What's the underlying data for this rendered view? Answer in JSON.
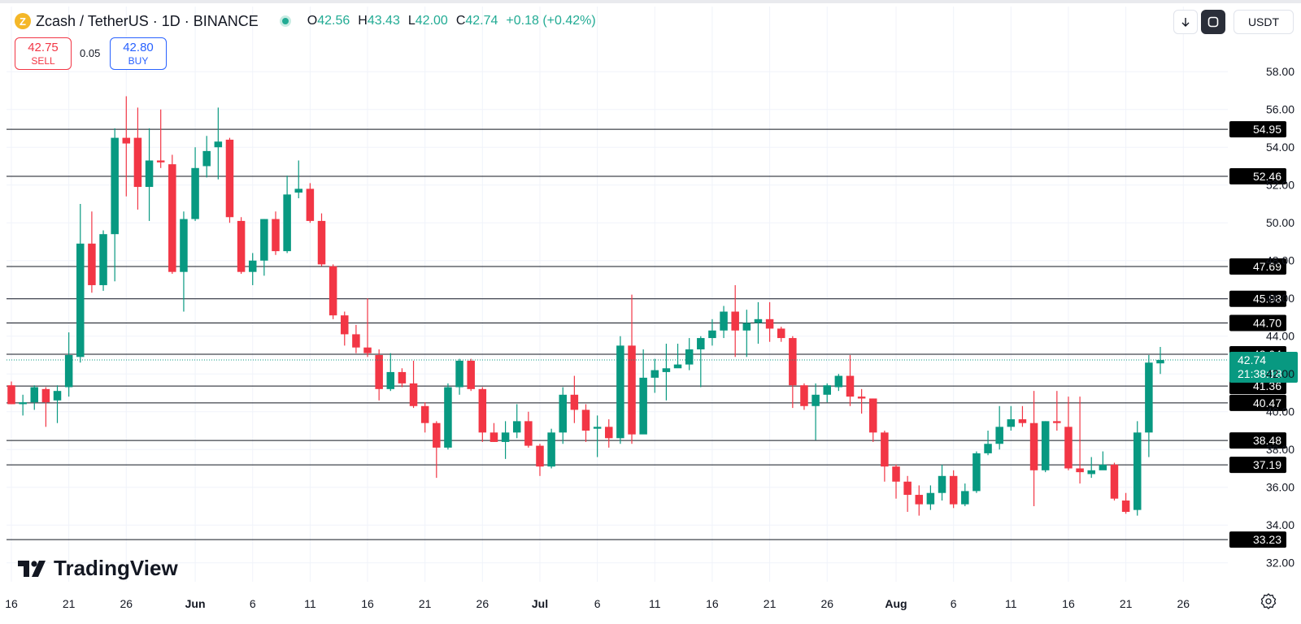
{
  "header": {
    "title": "Zcash / TetherUS · 1D · BINANCE",
    "ohlc": {
      "o_label": "O",
      "o": "42.56",
      "h_label": "H",
      "h": "43.43",
      "l_label": "L",
      "l": "42.00",
      "c_label": "C",
      "c": "42.74",
      "change": "+0.18 (+0.42%)"
    }
  },
  "trade": {
    "sell_price": "42.75",
    "sell_label": "SELL",
    "spread": "0.05",
    "buy_price": "42.80",
    "buy_label": "BUY"
  },
  "toolbar": {
    "currency": "USDT"
  },
  "brand": "TradingView",
  "colors": {
    "up": "#089981",
    "down": "#f23645",
    "line": "#131722",
    "grid": "#f0f3fa"
  },
  "icons": [
    "zcash-coin-icon",
    "market-status-icon",
    "arrow-down-icon",
    "fullscreen-icon",
    "tradingview-logo-icon",
    "settings-icon"
  ],
  "chart_data": {
    "type": "candlestick",
    "ylim": [
      31,
      59.3
    ],
    "y_ticks": [
      "58.00",
      "56.00",
      "54.00",
      "52.00",
      "50.00",
      "48.00",
      "46.00",
      "44.00",
      "42.00",
      "40.00",
      "38.00",
      "36.00",
      "34.00",
      "32.00"
    ],
    "x_ticks": [
      {
        "label": "16",
        "index": 0
      },
      {
        "label": "21",
        "index": 5
      },
      {
        "label": "26",
        "index": 10
      },
      {
        "label": "Jun",
        "index": 16
      },
      {
        "label": "6",
        "index": 21
      },
      {
        "label": "11",
        "index": 26
      },
      {
        "label": "16",
        "index": 31
      },
      {
        "label": "21",
        "index": 36
      },
      {
        "label": "26",
        "index": 41
      },
      {
        "label": "Jul",
        "index": 46
      },
      {
        "label": "6",
        "index": 51
      },
      {
        "label": "11",
        "index": 56
      },
      {
        "label": "16",
        "index": 61
      },
      {
        "label": "21",
        "index": 66
      },
      {
        "label": "26",
        "index": 71
      },
      {
        "label": "Aug",
        "index": 77
      },
      {
        "label": "6",
        "index": 82
      },
      {
        "label": "11",
        "index": 87
      },
      {
        "label": "16",
        "index": 92
      },
      {
        "label": "21",
        "index": 97
      },
      {
        "label": "26",
        "index": 102
      }
    ],
    "levels": [
      54.95,
      52.46,
      47.69,
      45.98,
      44.7,
      43.04,
      41.36,
      40.47,
      38.48,
      37.19,
      33.23
    ],
    "last_price": {
      "value": 42.74,
      "label": "42.74",
      "countdown": "21:38:18"
    },
    "candles": [
      [
        41.4,
        40.4,
        41.6,
        40.4
      ],
      [
        40.4,
        40.5,
        40.9,
        39.8
      ],
      [
        40.5,
        41.3,
        41.4,
        40.1
      ],
      [
        41.2,
        40.5,
        41.3,
        39.2
      ],
      [
        40.6,
        41.1,
        41.4,
        39.4
      ],
      [
        41.3,
        43.0,
        44.2,
        40.8
      ],
      [
        42.9,
        48.9,
        51.0,
        42.6
      ],
      [
        48.9,
        46.7,
        50.6,
        46.3
      ],
      [
        46.7,
        49.4,
        49.6,
        46.4
      ],
      [
        49.4,
        54.5,
        55.0,
        46.9
      ],
      [
        54.5,
        54.2,
        56.7,
        51.4
      ],
      [
        54.5,
        51.9,
        56.1,
        50.7
      ],
      [
        51.9,
        53.3,
        55.0,
        50.1
      ],
      [
        53.3,
        53.2,
        56.0,
        52.9
      ],
      [
        53.1,
        47.4,
        53.6,
        47.3
      ],
      [
        47.4,
        50.2,
        50.6,
        45.3
      ],
      [
        50.2,
        52.9,
        54.0,
        50.1
      ],
      [
        53.0,
        53.8,
        54.6,
        52.4
      ],
      [
        54.0,
        54.3,
        56.1,
        52.3
      ],
      [
        54.4,
        50.3,
        54.5,
        50.0
      ],
      [
        50.1,
        47.4,
        50.3,
        47.3
      ],
      [
        47.4,
        48.0,
        48.4,
        46.7
      ],
      [
        48.0,
        50.2,
        50.2,
        47.2
      ],
      [
        50.2,
        48.5,
        50.6,
        48.3
      ],
      [
        48.5,
        51.5,
        52.5,
        48.4
      ],
      [
        51.6,
        51.8,
        53.3,
        51.3
      ],
      [
        51.8,
        50.1,
        52.1,
        50.0
      ],
      [
        50.1,
        47.8,
        50.5,
        47.7
      ],
      [
        47.7,
        45.1,
        47.8,
        44.9
      ],
      [
        45.1,
        44.1,
        45.3,
        43.5
      ],
      [
        44.1,
        43.4,
        44.6,
        43.1
      ],
      [
        43.4,
        43.1,
        46.0,
        42.9
      ],
      [
        43.0,
        41.2,
        43.3,
        40.6
      ],
      [
        41.2,
        42.1,
        43.1,
        41.1
      ],
      [
        42.1,
        41.5,
        42.3,
        41.3
      ],
      [
        41.5,
        40.3,
        42.7,
        40.2
      ],
      [
        40.3,
        39.4,
        40.5,
        38.9
      ],
      [
        39.4,
        38.1,
        39.5,
        36.5
      ],
      [
        38.1,
        41.3,
        41.5,
        38.0
      ],
      [
        41.3,
        42.7,
        42.8,
        40.9
      ],
      [
        42.7,
        41.2,
        42.8,
        41.1
      ],
      [
        41.2,
        38.9,
        41.3,
        38.4
      ],
      [
        38.9,
        38.4,
        39.4,
        38.4
      ],
      [
        38.4,
        38.9,
        39.5,
        37.5
      ],
      [
        38.9,
        39.5,
        40.4,
        38.6
      ],
      [
        39.5,
        38.2,
        40.0,
        38.1
      ],
      [
        38.2,
        37.1,
        38.3,
        36.6
      ],
      [
        37.1,
        38.9,
        39.1,
        37.0
      ],
      [
        38.9,
        40.9,
        41.3,
        38.3
      ],
      [
        40.9,
        40.1,
        41.9,
        39.4
      ],
      [
        40.1,
        39.0,
        40.4,
        38.4
      ],
      [
        39.1,
        39.2,
        39.8,
        37.6
      ],
      [
        39.2,
        38.6,
        39.6,
        38.1
      ],
      [
        38.6,
        43.5,
        44.0,
        38.3
      ],
      [
        43.5,
        38.8,
        46.2,
        38.3
      ],
      [
        38.8,
        41.8,
        43.3,
        40.2
      ],
      [
        41.8,
        42.2,
        42.8,
        41.0
      ],
      [
        42.1,
        42.3,
        43.6,
        40.6
      ],
      [
        42.3,
        42.5,
        43.6,
        42.4
      ],
      [
        42.5,
        43.3,
        43.9,
        42.2
      ],
      [
        43.3,
        43.9,
        44.0,
        41.3
      ],
      [
        43.9,
        44.3,
        44.9,
        43.5
      ],
      [
        44.3,
        45.3,
        45.6,
        43.9
      ],
      [
        45.3,
        44.3,
        46.7,
        42.9
      ],
      [
        44.3,
        44.7,
        45.4,
        42.9
      ],
      [
        44.7,
        44.9,
        45.8,
        43.6
      ],
      [
        44.9,
        44.4,
        45.8,
        43.7
      ],
      [
        44.4,
        43.9,
        44.5,
        43.7
      ],
      [
        43.9,
        41.4,
        44.0,
        40.2
      ],
      [
        41.4,
        40.3,
        41.5,
        40.1
      ],
      [
        40.3,
        40.9,
        41.5,
        38.5
      ],
      [
        40.9,
        41.4,
        41.5,
        40.5
      ],
      [
        41.3,
        41.9,
        42.0,
        41.1
      ],
      [
        41.9,
        40.8,
        43.0,
        40.3
      ],
      [
        40.8,
        40.7,
        41.2,
        39.9
      ],
      [
        40.7,
        38.9,
        40.7,
        38.4
      ],
      [
        38.9,
        37.1,
        39.0,
        36.3
      ],
      [
        37.1,
        36.3,
        37.2,
        35.4
      ],
      [
        36.3,
        35.6,
        36.6,
        34.7
      ],
      [
        35.6,
        35.1,
        36.1,
        34.5
      ],
      [
        35.1,
        35.7,
        36.1,
        34.8
      ],
      [
        35.7,
        36.6,
        37.2,
        35.3
      ],
      [
        36.6,
        35.1,
        36.9,
        34.9
      ],
      [
        35.1,
        35.8,
        36.2,
        35.0
      ],
      [
        35.8,
        37.8,
        37.9,
        35.7
      ],
      [
        37.8,
        38.3,
        39.0,
        37.7
      ],
      [
        38.3,
        39.2,
        40.3,
        38.0
      ],
      [
        39.2,
        39.6,
        40.3,
        39.0
      ],
      [
        39.6,
        39.4,
        40.3,
        39.2
      ],
      [
        39.4,
        36.9,
        41.1,
        35.0
      ],
      [
        36.9,
        39.5,
        39.5,
        36.8
      ],
      [
        39.5,
        39.4,
        41.1,
        39.0
      ],
      [
        39.2,
        37.0,
        40.8,
        36.9
      ],
      [
        37.0,
        36.8,
        40.8,
        36.2
      ],
      [
        36.7,
        36.9,
        37.6,
        36.5
      ],
      [
        36.9,
        37.2,
        37.9,
        37.0
      ],
      [
        37.2,
        35.4,
        37.3,
        35.3
      ],
      [
        35.3,
        34.7,
        35.7,
        34.6
      ],
      [
        34.8,
        38.9,
        39.5,
        34.5
      ],
      [
        38.9,
        42.6,
        43.0,
        37.6
      ],
      [
        42.56,
        42.74,
        43.43,
        42.0
      ]
    ]
  }
}
